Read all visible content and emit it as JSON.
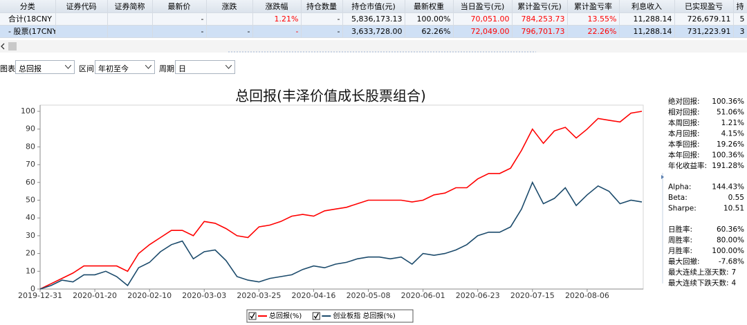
{
  "table": {
    "header": [
      "分类",
      "证券代码",
      "证券简称",
      "最新价",
      "涨跌",
      "涨跌幅",
      "持仓数量",
      "持仓市值(元)",
      "最新权重",
      "当日盈亏(元)",
      "累计盈亏(元)",
      "累计盈亏率",
      "利息收入",
      "已实现盈亏",
      "持"
    ],
    "rows": [
      [
        "合计(18CNY",
        null,
        null,
        "-",
        null,
        "1.21%",
        "-",
        "5,836,173.13",
        "100.00%",
        "70,051.00",
        "784,253.73",
        "13.55%",
        "11,288.14",
        "726,679.11",
        "5"
      ],
      [
        "- 股票(17CNY",
        null,
        null,
        "-",
        "-",
        "-",
        "-",
        "3,633,728.00",
        "62.26%",
        "72,049.00",
        "796,701.73",
        "22.26%",
        "11,288.14",
        "731,223.91",
        "3"
      ]
    ]
  },
  "controls": [
    {
      "label": "图表",
      "value": "总回报"
    },
    {
      "label": "区间",
      "value": "年初至今"
    },
    {
      "label": "周期",
      "value": "日"
    }
  ],
  "chart": {
    "type": "line",
    "title": "总回报(丰泽价值成长股票组合)",
    "categories": [
      "2019-12-31",
      null,
      null,
      null,
      null,
      "2020-01-20",
      null,
      null,
      null,
      null,
      "2020-02-10",
      null,
      null,
      null,
      null,
      "2020-03-03",
      null,
      null,
      null,
      null,
      "2020-03-25",
      null,
      null,
      null,
      null,
      "2020-04-16",
      null,
      null,
      null,
      null,
      "2020-05-08",
      null,
      null,
      null,
      null,
      "2020-06-01",
      null,
      null,
      null,
      null,
      "2020-06-23",
      null,
      null,
      null,
      null,
      "2020-07-15",
      null,
      null,
      null,
      null,
      "2020-08-06",
      null,
      null,
      null,
      null,
      null
    ],
    "series": [
      {
        "name": "总回报(%)",
        "color": "#ff0000",
        "values": [
          0,
          3,
          6,
          9,
          13,
          13,
          13,
          13,
          10,
          20,
          25,
          29,
          33,
          33,
          30,
          38,
          37,
          34,
          30,
          29,
          35,
          36,
          38,
          41,
          42,
          41,
          44,
          45,
          46,
          48,
          50,
          50,
          50,
          50,
          49,
          50,
          53,
          54,
          57,
          57,
          62,
          65,
          65,
          68,
          78,
          90,
          82,
          89,
          91,
          85,
          90,
          96,
          95,
          94,
          99,
          100
        ]
      },
      {
        "name": "创业板指 总回报(%)",
        "color": "#1b4a6b",
        "values": [
          0,
          2,
          5,
          4,
          8,
          8,
          10,
          7,
          2,
          12,
          15,
          21,
          25,
          27,
          17,
          21,
          22,
          16,
          7,
          5,
          4,
          6,
          7,
          8,
          11,
          13,
          12,
          14,
          15,
          17,
          18,
          18,
          17,
          18,
          14,
          20,
          19,
          20,
          22,
          25,
          30,
          32,
          32,
          35,
          45,
          60,
          48,
          51,
          57,
          47,
          53,
          58,
          55,
          48,
          50,
          49
        ]
      }
    ],
    "ylim": [
      0,
      100
    ],
    "yticks": [
      0,
      10,
      20,
      30,
      40,
      50,
      60,
      70,
      80,
      90,
      100
    ],
    "legend": "bottom"
  },
  "stats": [
    [
      {
        "label": "绝对回报:",
        "value": "100.36%"
      },
      {
        "label": "相对回报:",
        "value": "51.06%"
      },
      {
        "label": "本周回报:",
        "value": "1.21%"
      },
      {
        "label": "本月回报:",
        "value": "4.15%"
      },
      {
        "label": "本季回报:",
        "value": "19.26%"
      },
      {
        "label": "本年回报:",
        "value": "100.36%"
      },
      {
        "label": "年化收益率:",
        "value": "191.28%"
      }
    ],
    [
      {
        "label": "Alpha:",
        "value": "144.43%"
      },
      {
        "label": "Beta:",
        "value": "0.55"
      },
      {
        "label": "Sharpe:",
        "value": "10.51"
      }
    ],
    [
      {
        "label": "日胜率:",
        "value": "60.36%"
      },
      {
        "label": "周胜率:",
        "value": "80.00%"
      },
      {
        "label": "月胜率:",
        "value": "100.00%"
      },
      {
        "label": "最大回撤:",
        "value": "-7.68%"
      },
      {
        "label": "最大连续上涨天数:",
        "value": "7"
      },
      {
        "label": "最大连续下跌天数:",
        "value": "4"
      }
    ]
  ]
}
